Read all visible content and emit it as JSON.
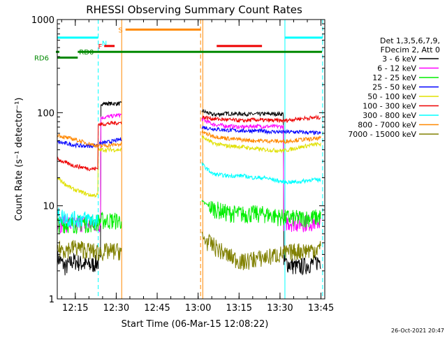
{
  "chart_data": {
    "type": "line",
    "title": "RHESSI Observing Summary Count Rates",
    "xlabel": "Start Time (06-Mar-15 12:08:22)",
    "ylabel": "Count Rate (s⁻¹ detector⁻¹)",
    "y_scale": "log",
    "ylim": [
      1,
      1000
    ],
    "xlim_minutes_after_start": [
      0,
      98
    ],
    "x_ticks": [
      {
        "label": "12:15",
        "t": 6.6
      },
      {
        "label": "12:30",
        "t": 21.6
      },
      {
        "label": "12:45",
        "t": 36.6
      },
      {
        "label": "13:00",
        "t": 51.6
      },
      {
        "label": "13:15",
        "t": 66.6
      },
      {
        "label": "13:30",
        "t": 81.6
      },
      {
        "label": "13:45",
        "t": 96.6
      }
    ],
    "y_ticks": [
      {
        "label": "1",
        "v": 1
      },
      {
        "label": "10",
        "v": 10
      },
      {
        "label": "100",
        "v": 100
      },
      {
        "label": "1000",
        "v": 1000
      }
    ],
    "legend": {
      "position": "right",
      "header": [
        "Det 1,3,5,6,7,9,",
        "FDecim 2, Att 0"
      ]
    },
    "series": [
      {
        "name": "3 - 6 keV",
        "color": "#000000",
        "points": [
          [
            0,
            2.8
          ],
          [
            3,
            2.2
          ],
          [
            6,
            2.6
          ],
          [
            9,
            2.4
          ],
          [
            12,
            2.3
          ],
          [
            15,
            2.5
          ],
          [
            16,
            125
          ],
          [
            20,
            125
          ],
          [
            23.5,
            125
          ],
          [
            53,
            105
          ],
          [
            57,
            95
          ],
          [
            62,
            98
          ],
          [
            68,
            97
          ],
          [
            72,
            96
          ],
          [
            76,
            97
          ],
          [
            83,
            2.5
          ],
          [
            88,
            2.2
          ],
          [
            93,
            2.4
          ],
          [
            96.5,
            2.6
          ]
        ]
      },
      {
        "name": "6 - 12 keV",
        "color": "#ff00ff",
        "points": [
          [
            0,
            6.5
          ],
          [
            3,
            6.5
          ],
          [
            6,
            6.3
          ],
          [
            9,
            6.6
          ],
          [
            12,
            6.4
          ],
          [
            15,
            6.5
          ],
          [
            16,
            88
          ],
          [
            20,
            92
          ],
          [
            23.5,
            95
          ],
          [
            53,
            85
          ],
          [
            57,
            75
          ],
          [
            62,
            72
          ],
          [
            68,
            70
          ],
          [
            72,
            72
          ],
          [
            76,
            71
          ],
          [
            83,
            6.8
          ],
          [
            88,
            6.6
          ],
          [
            93,
            6.7
          ],
          [
            96.5,
            6.8
          ]
        ]
      },
      {
        "name": "12 - 25 keV",
        "color": "#00ee00",
        "points": [
          [
            0,
            6.3
          ],
          [
            3,
            6.5
          ],
          [
            6,
            6.4
          ],
          [
            9,
            6.6
          ],
          [
            12,
            6.5
          ],
          [
            15,
            6.8
          ],
          [
            16,
            7
          ],
          [
            20,
            7
          ],
          [
            23.5,
            7
          ],
          [
            53,
            11
          ],
          [
            57,
            9.5
          ],
          [
            62,
            8.5
          ],
          [
            68,
            8.2
          ],
          [
            72,
            8.3
          ],
          [
            76,
            8.2
          ],
          [
            83,
            7.5
          ],
          [
            88,
            7.4
          ],
          [
            93,
            7.5
          ],
          [
            96.5,
            7.6
          ]
        ]
      },
      {
        "name": "25 - 50 keV",
        "color": "#0000ff",
        "points": [
          [
            0,
            48
          ],
          [
            3,
            47
          ],
          [
            6,
            45
          ],
          [
            9,
            44
          ],
          [
            12,
            44
          ],
          [
            15,
            45
          ],
          [
            16,
            47
          ],
          [
            20,
            49
          ],
          [
            23.5,
            52
          ],
          [
            53,
            70
          ],
          [
            57,
            67
          ],
          [
            62,
            65
          ],
          [
            68,
            64
          ],
          [
            72,
            64
          ],
          [
            76,
            63
          ],
          [
            83,
            62
          ],
          [
            88,
            62
          ],
          [
            93,
            61
          ],
          [
            96.5,
            60
          ]
        ]
      },
      {
        "name": "50 - 100 keV",
        "color": "#e0e000",
        "points": [
          [
            0,
            20
          ],
          [
            3,
            17
          ],
          [
            6,
            15
          ],
          [
            9,
            14
          ],
          [
            12,
            13
          ],
          [
            15,
            40
          ],
          [
            16,
            40
          ],
          [
            20,
            40
          ],
          [
            23.5,
            40
          ],
          [
            53,
            55
          ],
          [
            57,
            47
          ],
          [
            62,
            44
          ],
          [
            68,
            43
          ],
          [
            72,
            41
          ],
          [
            76,
            40
          ],
          [
            83,
            39
          ],
          [
            88,
            42
          ],
          [
            93,
            45
          ],
          [
            96.5,
            46
          ]
        ]
      },
      {
        "name": "100 - 300 keV",
        "color": "#ee0000",
        "points": [
          [
            0,
            32
          ],
          [
            3,
            29
          ],
          [
            6,
            27
          ],
          [
            9,
            26
          ],
          [
            12,
            25
          ],
          [
            15,
            75
          ],
          [
            16,
            75
          ],
          [
            20,
            77
          ],
          [
            23.5,
            78
          ],
          [
            53,
            90
          ],
          [
            57,
            86
          ],
          [
            62,
            84
          ],
          [
            68,
            82
          ],
          [
            72,
            84
          ],
          [
            76,
            83
          ],
          [
            83,
            82
          ],
          [
            88,
            86
          ],
          [
            93,
            88
          ],
          [
            96.5,
            89
          ]
        ]
      },
      {
        "name": "300 - 800 keV",
        "color": "#00ffff",
        "points": [
          [
            0,
            8
          ],
          [
            3,
            7.5
          ],
          [
            6,
            7.2
          ],
          [
            9,
            7.3
          ],
          [
            12,
            7.2
          ],
          [
            15,
            7
          ],
          [
            53,
            28
          ],
          [
            57,
            22
          ],
          [
            62,
            21
          ],
          [
            68,
            21
          ],
          [
            72,
            20
          ],
          [
            76,
            20
          ],
          [
            83,
            18
          ],
          [
            88,
            18
          ],
          [
            93,
            19
          ],
          [
            96.5,
            19
          ]
        ]
      },
      {
        "name": "800 - 7000 keV",
        "color": "#ff8800",
        "points": [
          [
            0,
            58
          ],
          [
            3,
            54
          ],
          [
            6,
            52
          ],
          [
            9,
            49
          ],
          [
            12,
            46
          ],
          [
            15,
            44
          ],
          [
            16,
            44
          ],
          [
            20,
            45
          ],
          [
            23.5,
            46
          ],
          [
            53,
            62
          ],
          [
            57,
            56
          ],
          [
            62,
            53
          ],
          [
            68,
            51
          ],
          [
            72,
            50
          ],
          [
            76,
            50
          ],
          [
            83,
            49
          ],
          [
            88,
            51
          ],
          [
            93,
            52
          ],
          [
            96.5,
            53
          ]
        ]
      },
      {
        "name": "7000 - 15000 keV",
        "color": "#808000",
        "points": [
          [
            0,
            3.5
          ],
          [
            3,
            3.4
          ],
          [
            6,
            3.6
          ],
          [
            9,
            3.5
          ],
          [
            12,
            3.3
          ],
          [
            15,
            3.2
          ],
          [
            16,
            3.2
          ],
          [
            20,
            3.3
          ],
          [
            23.5,
            3.3
          ],
          [
            53,
            4.5
          ],
          [
            57,
            3.8
          ],
          [
            62,
            3.0
          ],
          [
            68,
            2.5
          ],
          [
            72,
            2.7
          ],
          [
            76,
            2.8
          ],
          [
            83,
            3.1
          ],
          [
            88,
            3.3
          ],
          [
            93,
            3.4
          ],
          [
            96.5,
            3.5
          ]
        ]
      }
    ],
    "gaps_minutes": [
      [
        23.5,
        53
      ]
    ],
    "vertical_markers": [
      {
        "t": 15.0,
        "color": "#00ffff",
        "style": "dashed"
      },
      {
        "t": 23.6,
        "color": "#ff8800",
        "style": "solid"
      },
      {
        "t": 52.5,
        "color": "#ff8800",
        "style": "dashed"
      },
      {
        "t": 53.3,
        "color": "#ff8800",
        "style": "solid"
      },
      {
        "t": 83.4,
        "color": "#00ffff",
        "style": "solid"
      },
      {
        "t": 97.2,
        "color": "#00ffff",
        "style": "dashed"
      }
    ],
    "flag_bars": [
      {
        "label": "",
        "color": "#00ffff",
        "t0": 0,
        "t1": 15,
        "v": 640
      },
      {
        "label": "N",
        "color": "#00ffff",
        "t0": 15.3,
        "t1": 15.3,
        "v": 560
      },
      {
        "label": "F",
        "color": "#ee0000",
        "t0": 17.2,
        "t1": 21.0,
        "v": 520
      },
      {
        "label": "S",
        "color": "#ff8800",
        "t0": 25.0,
        "t1": 52.5,
        "v": 780
      },
      {
        "label": "",
        "color": "#ee0000",
        "t0": 58.4,
        "t1": 75.0,
        "v": 520
      },
      {
        "label": "",
        "color": "#00ffff",
        "t0": 83.4,
        "t1": 97.2,
        "v": 640
      },
      {
        "label": "RD0",
        "color": "#008800",
        "t0": 7.5,
        "t1": 97.0,
        "v": 450
      },
      {
        "label": "RD6",
        "color": "#008800",
        "t0": 0,
        "t1": 7.5,
        "v": 390
      }
    ]
  },
  "footer": {
    "timestamp": "26-Oct-2021 20:47"
  },
  "colors": {
    "background": "#ffffff",
    "axis": "#000000"
  }
}
